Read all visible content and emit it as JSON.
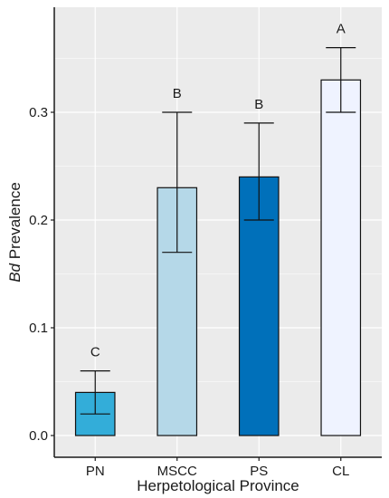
{
  "chart_data": {
    "type": "bar",
    "categories": [
      "PN",
      "MSCC",
      "PS",
      "CL"
    ],
    "values": [
      0.04,
      0.23,
      0.24,
      0.33
    ],
    "error_low": [
      0.02,
      0.17,
      0.2,
      0.3
    ],
    "error_high": [
      0.06,
      0.3,
      0.29,
      0.36
    ],
    "significance_letters": [
      "C",
      "B",
      "B",
      "A"
    ],
    "bar_colors": [
      "#33ADD9",
      "#B5D8E8",
      "#0070BA",
      "#EFF3FF"
    ],
    "xlabel": "Herpetological Province",
    "ylabel_italic": "Bd",
    "ylabel_rest": " Prevalence",
    "ylim": [
      -0.02,
      0.385
    ],
    "yticks": [
      "0.0",
      "0.1",
      "0.2",
      "0.3"
    ],
    "ytick_values": [
      0.0,
      0.1,
      0.2,
      0.3
    ],
    "grid": true,
    "panel_background": "#EBEBEB",
    "gridline_color": "#FFFFFF"
  }
}
